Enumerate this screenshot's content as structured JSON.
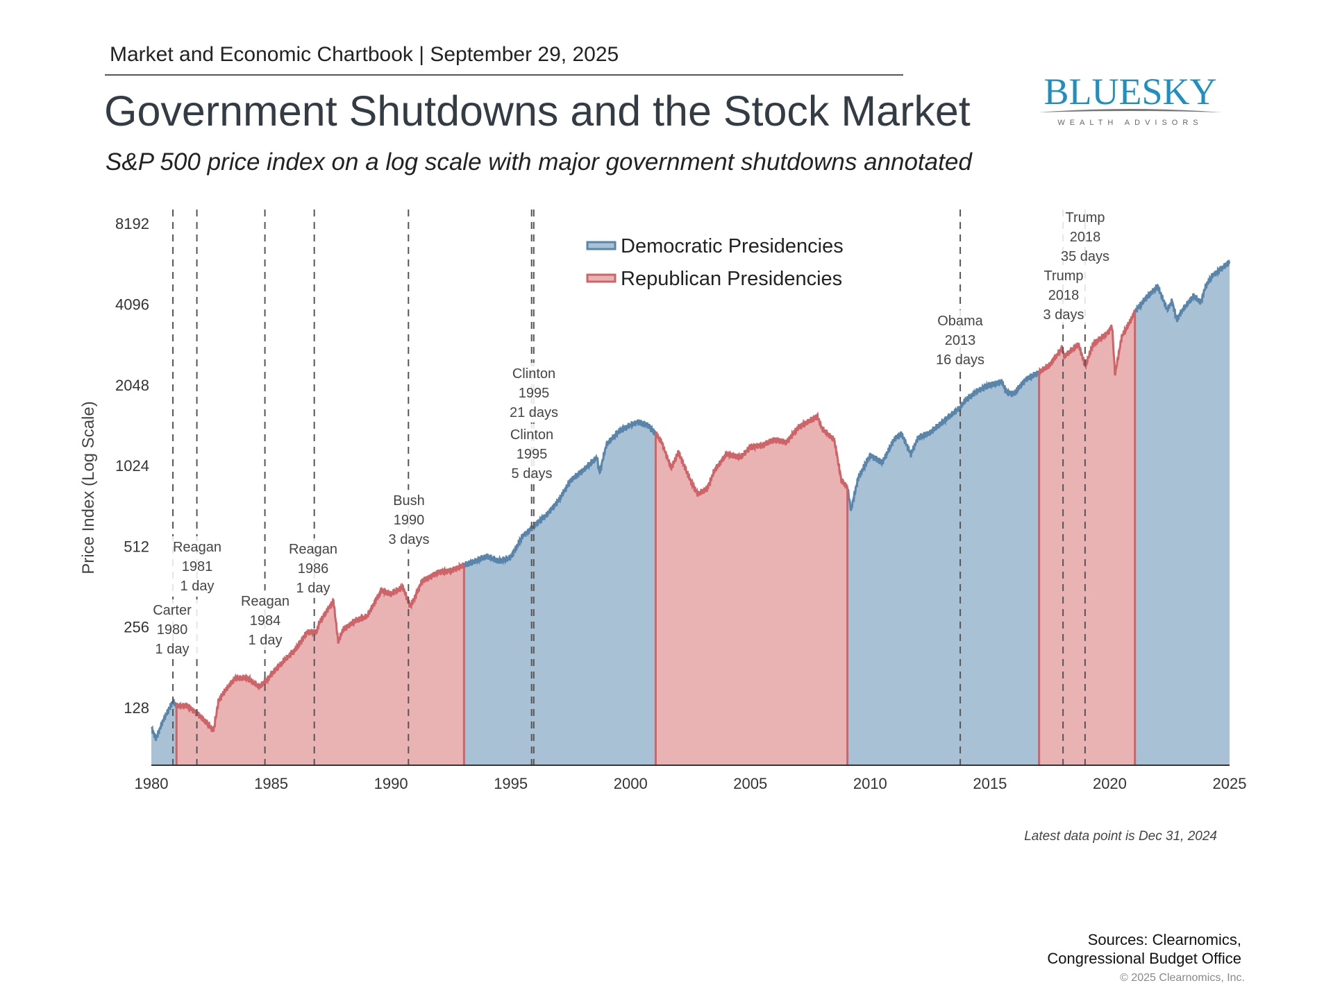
{
  "header": {
    "kicker": "Market and Economic Chartbook | September 29, 2025",
    "title": "Government Shutdowns and the Stock Market",
    "subtitle": "S&P 500 price index on a log scale with major government shutdowns annotated"
  },
  "logo": {
    "name": "BLUESKY",
    "tagline": "WEALTH ADVISORS",
    "color": "#1f8fbf"
  },
  "chart_data": {
    "type": "area",
    "title": "",
    "ylabel": "Price Index (Log Scale)",
    "xlabel": "",
    "yscale": "log2",
    "ylim": [
      78,
      9000
    ],
    "xlim": [
      1980,
      2025
    ],
    "yticks": [
      128,
      256,
      512,
      1024,
      2048,
      4096,
      8192
    ],
    "xticks": [
      1980,
      1985,
      1990,
      1995,
      2000,
      2005,
      2010,
      2015,
      2020,
      2025
    ],
    "grid": false,
    "legend_position": "top-center",
    "legend": [
      {
        "label": "Democratic Presidencies",
        "party": "D"
      },
      {
        "label": "Republican Presidencies",
        "party": "R"
      }
    ],
    "colors": {
      "D_fill": "#a9c1d5",
      "D_line": "#5a85ab",
      "R_fill": "#e9b3b4",
      "R_line": "#cc6468",
      "shutdown_line": "#555555"
    },
    "presidencies": [
      {
        "party": "D",
        "start": 1980.0,
        "end": 1981.05
      },
      {
        "party": "R",
        "start": 1981.05,
        "end": 1993.05
      },
      {
        "party": "D",
        "start": 1993.05,
        "end": 2001.05
      },
      {
        "party": "R",
        "start": 2001.05,
        "end": 2009.05
      },
      {
        "party": "D",
        "start": 2009.05,
        "end": 2017.05
      },
      {
        "party": "R",
        "start": 2017.05,
        "end": 2021.05
      },
      {
        "party": "D",
        "start": 2021.05,
        "end": 2025.0
      }
    ],
    "series": [
      {
        "x": [
          1980.0,
          1980.2,
          1980.5,
          1980.9,
          1981.05,
          1981.5,
          1981.9,
          1982.2,
          1982.6,
          1982.8,
          1983.0,
          1983.5,
          1984.0,
          1984.5,
          1984.9,
          1985.0,
          1985.5,
          1986.0,
          1986.5,
          1986.9,
          1987.0,
          1987.6,
          1987.8,
          1988.0,
          1988.5,
          1989.0,
          1989.6,
          1990.0,
          1990.5,
          1990.8,
          1991.0,
          1991.3,
          1992.0,
          1992.5,
          1993.05,
          1993.5,
          1994.0,
          1994.5,
          1995.0,
          1995.5,
          1995.9,
          1996.0,
          1996.5,
          1997.0,
          1997.5,
          1998.0,
          1998.6,
          1998.7,
          1999.0,
          1999.5,
          2000.0,
          2000.3,
          2000.7,
          2001.05,
          2001.3,
          2001.7,
          2002.0,
          2002.5,
          2002.8,
          2003.2,
          2003.5,
          2004.0,
          2004.6,
          2005.0,
          2005.5,
          2006.0,
          2006.5,
          2007.0,
          2007.8,
          2008.0,
          2008.5,
          2008.8,
          2009.05,
          2009.2,
          2009.5,
          2010.0,
          2010.5,
          2011.0,
          2011.3,
          2011.7,
          2012.0,
          2012.5,
          2013.0,
          2013.76,
          2014.0,
          2014.5,
          2015.0,
          2015.5,
          2015.7,
          2016.0,
          2016.5,
          2017.05,
          2017.5,
          2018.0,
          2018.1,
          2018.7,
          2018.98,
          2019.3,
          2019.9,
          2020.1,
          2020.22,
          2020.5,
          2020.9,
          2021.05,
          2021.5,
          2022.0,
          2022.4,
          2022.6,
          2022.8,
          2023.0,
          2023.5,
          2023.8,
          2024.0,
          2024.3,
          2024.6,
          2024.99
        ],
        "y": [
          107,
          98,
          115,
          135,
          130,
          130,
          122,
          115,
          105,
          135,
          145,
          165,
          165,
          153,
          165,
          170,
          190,
          210,
          245,
          245,
          265,
          320,
          225,
          250,
          270,
          280,
          350,
          340,
          360,
          305,
          330,
          380,
          410,
          415,
          435,
          450,
          470,
          450,
          465,
          560,
          600,
          615,
          670,
          760,
          900,
          980,
          1100,
          960,
          1230,
          1370,
          1450,
          1490,
          1450,
          1350,
          1250,
          1000,
          1150,
          900,
          800,
          840,
          980,
          1130,
          1100,
          1200,
          1220,
          1280,
          1250,
          1420,
          1560,
          1400,
          1280,
          900,
          850,
          700,
          920,
          1120,
          1050,
          1280,
          1350,
          1130,
          1300,
          1360,
          1480,
          1690,
          1800,
          1950,
          2050,
          2100,
          1920,
          1900,
          2150,
          2280,
          2430,
          2800,
          2620,
          2900,
          2400,
          2900,
          3200,
          3380,
          2240,
          3100,
          3600,
          3850,
          4300,
          4780,
          3900,
          4200,
          3580,
          3850,
          4400,
          4150,
          4780,
          5250,
          5500,
          5880
        ]
      }
    ],
    "shutdowns": [
      {
        "date": 1980.9,
        "president": "Carter",
        "year": "1980",
        "duration": "1 day"
      },
      {
        "date": 1981.9,
        "president": "Reagan",
        "year": "1981",
        "duration": "1 day"
      },
      {
        "date": 1984.74,
        "president": "Reagan",
        "year": "1984",
        "duration": "1 day"
      },
      {
        "date": 1986.8,
        "president": "Reagan",
        "year": "1986",
        "duration": "1 day"
      },
      {
        "date": 1990.73,
        "president": "Bush",
        "year": "1990",
        "duration": "3 days"
      },
      {
        "date": 1995.96,
        "president": "Clinton",
        "year": "1995",
        "duration": "21 days"
      },
      {
        "date": 1995.87,
        "president": "Clinton",
        "year": "1995",
        "duration": "5 days"
      },
      {
        "date": 2013.76,
        "president": "Obama",
        "year": "2013",
        "duration": "16 days"
      },
      {
        "date": 2018.97,
        "president": "Trump",
        "year": "2018",
        "duration": "35 days"
      },
      {
        "date": 2018.05,
        "president": "Trump",
        "year": "2018",
        "duration": "3 days"
      }
    ],
    "footnote": "Latest data point is Dec 31, 2024"
  },
  "footer": {
    "sources_line1": "Sources: Clearnomics,",
    "sources_line2": "Congressional Budget Office",
    "copyright": "© 2025 Clearnomics, Inc."
  }
}
